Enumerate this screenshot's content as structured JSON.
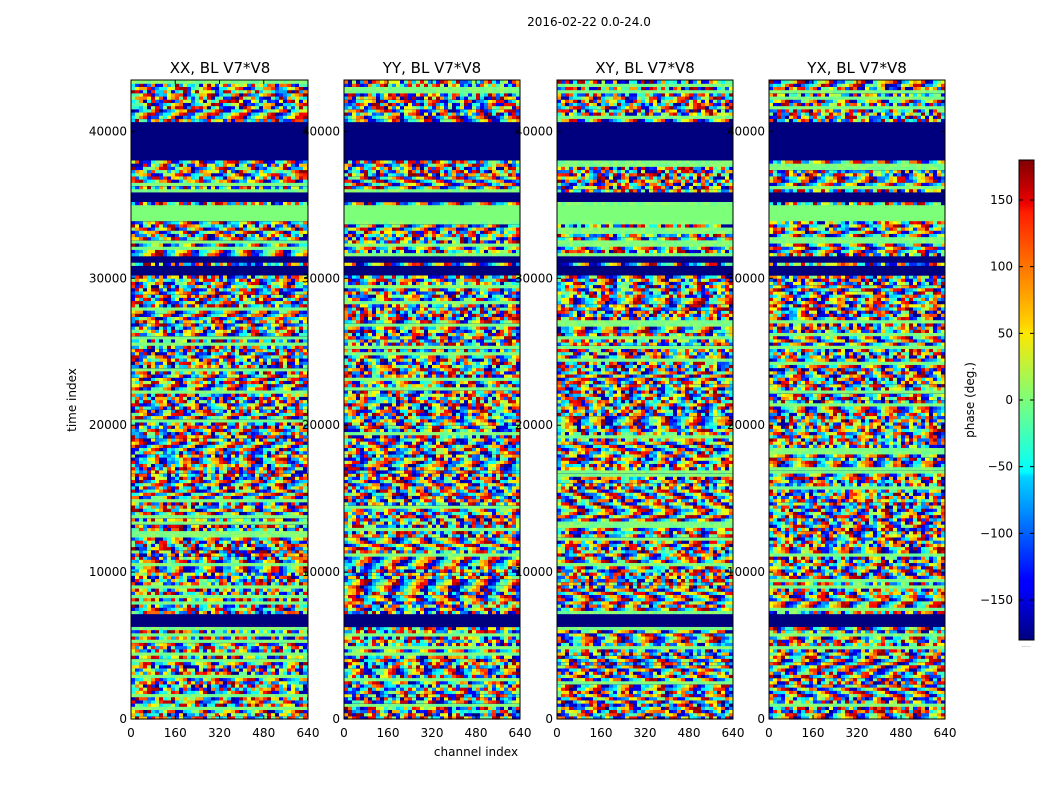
{
  "chart_data": {
    "type": "heatmap",
    "suptitle": "2016-02-22 0.0-24.0",
    "xlabel": "channel index",
    "ylabel": "time index",
    "xlim": [
      0,
      640
    ],
    "ylim": [
      0,
      43500
    ],
    "xticks": [
      "0",
      "160",
      "320",
      "480",
      "640"
    ],
    "xtick_values": [
      0,
      160,
      320,
      480,
      640
    ],
    "yticks": [
      "0",
      "10000",
      "20000",
      "30000",
      "40000"
    ],
    "ytick_values": [
      0,
      10000,
      20000,
      30000,
      40000
    ],
    "panels": [
      {
        "title": "XX, BL V7*V8"
      },
      {
        "title": "YY, BL V7*V8"
      },
      {
        "title": "XY, BL V7*V8"
      },
      {
        "title": "YX, BL V7*V8"
      }
    ],
    "colorbar": {
      "label": "phase (deg.)",
      "range": [
        -180,
        180
      ],
      "ticks": [
        "150",
        "100",
        "50",
        "0",
        "−50",
        "−100",
        "−150"
      ],
      "tick_values": [
        150,
        100,
        50,
        0,
        -50,
        -100,
        -150
      ],
      "colormap": "jet"
    },
    "flagged_time_ranges": [
      [
        6400,
        7100
      ],
      [
        30200,
        30800
      ],
      [
        31000,
        31600
      ],
      [
        35300,
        35800
      ],
      [
        38000,
        40600
      ]
    ],
    "constant_phase_ranges": [
      [
        34000,
        35000
      ]
    ],
    "footnote": "....."
  },
  "colors": {
    "flag": "#00007f",
    "constant": "#7cff79",
    "frame": "#000000"
  }
}
